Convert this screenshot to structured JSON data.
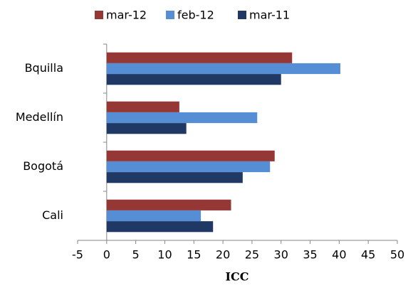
{
  "chart_data": {
    "type": "hbar",
    "x_label": "ICC",
    "categories": [
      "Bquilla",
      "Medellín",
      "Bogotá",
      "Cali"
    ],
    "series": [
      {
        "name": "mar-12",
        "color": "#953735",
        "values": [
          31.9,
          12.5,
          28.9,
          21.4
        ]
      },
      {
        "name": "feb-12",
        "color": "#558ed5",
        "values": [
          40.2,
          25.9,
          28.1,
          16.2
        ]
      },
      {
        "name": "mar-11",
        "color": "#1f3864",
        "values": [
          30.0,
          13.7,
          23.4,
          18.3
        ]
      }
    ],
    "xlim": [
      -5,
      50
    ],
    "xticks": [
      -5,
      0,
      5,
      10,
      15,
      20,
      25,
      30,
      35,
      40,
      45,
      50
    ],
    "legend": "top",
    "grid": false
  }
}
